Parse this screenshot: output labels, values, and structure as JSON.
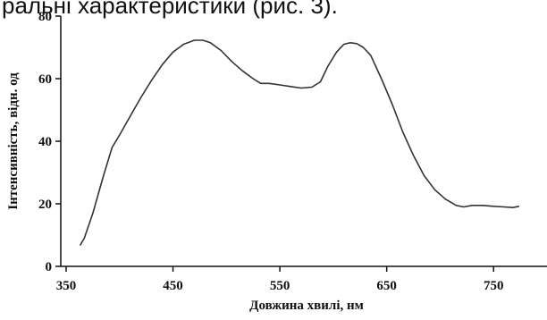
{
  "caption": "ральні характеристики (рис. 3).",
  "chart_data": {
    "type": "line",
    "title": "",
    "xlabel": "Довжина хвилі, нм",
    "ylabel": "Інтенсивність, відн. од",
    "xlim": [
      345,
      800
    ],
    "ylim": [
      0,
      80
    ],
    "xticks": [
      350,
      450,
      550,
      650,
      750
    ],
    "yticks": [
      0,
      20,
      40,
      60,
      80
    ],
    "grid": false,
    "series": [
      {
        "x": [
          363,
          367,
          375,
          385,
          393,
          400,
          410,
          420,
          430,
          440,
          450,
          460,
          470,
          478,
          485,
          495,
          505,
          515,
          525,
          532,
          540,
          550,
          560,
          570,
          580,
          588,
          595,
          603,
          610,
          616,
          622,
          628,
          635,
          645,
          655,
          665,
          675,
          685,
          695,
          705,
          715,
          722,
          730,
          740,
          750,
          760,
          768,
          774
        ],
        "y": [
          6.7,
          9,
          17,
          29,
          38,
          42,
          48,
          54,
          59.5,
          64.5,
          68.5,
          71,
          72.3,
          72.3,
          71.5,
          69,
          65.5,
          62.5,
          60,
          58.5,
          58.5,
          58,
          57.5,
          57,
          57.3,
          59,
          64,
          68.5,
          71,
          71.5,
          71.2,
          70,
          67.5,
          60,
          52,
          43,
          35.5,
          29,
          24.5,
          21.5,
          19.5,
          19,
          19.5,
          19.5,
          19.2,
          19,
          18.8,
          19.2
        ]
      }
    ]
  }
}
